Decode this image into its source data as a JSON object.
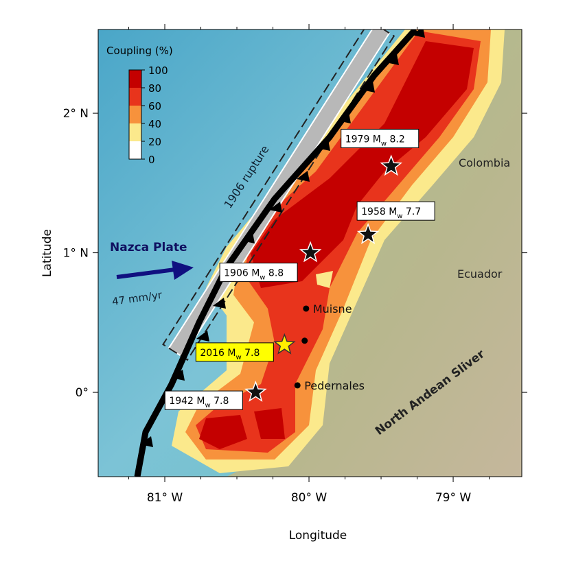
{
  "map": {
    "xlabel": "Longitude",
    "ylabel": "Latitude",
    "xlim": [
      -81.462,
      -78.524
    ],
    "ylim": [
      -0.604,
      2.6
    ],
    "xticks": [
      {
        "value": -81,
        "label": "81°  W"
      },
      {
        "value": -80,
        "label": "80° W"
      },
      {
        "value": -79,
        "label": "79°  W"
      }
    ],
    "yticks": [
      {
        "value": 2,
        "label": "2° N"
      },
      {
        "value": 1,
        "label": "1° N"
      },
      {
        "value": 0,
        "label": "0°"
      }
    ],
    "colorbar": {
      "title": "Coupling (%)",
      "ticks": [
        100,
        80,
        60,
        40,
        20,
        0
      ],
      "colors": [
        "#c40000",
        "#e8341c",
        "#f7923c",
        "#fbe98c",
        "#ffffff"
      ]
    },
    "quakes": [
      {
        "name": "1979 M",
        "sub": "w",
        "mag": " 8.2",
        "lon": -79.43,
        "lat": 1.62,
        "color": "#111111"
      },
      {
        "name": "1958 M",
        "sub": "w",
        "mag": " 7.7",
        "lon": -79.59,
        "lat": 1.13,
        "color": "#111111"
      },
      {
        "name": "1906 M",
        "sub": "w",
        "mag": " 8.8",
        "lon": -79.99,
        "lat": 1.0,
        "color": "#111111"
      },
      {
        "name": "2016 M",
        "sub": "w",
        "mag": " 7.8",
        "lon": -80.17,
        "lat": 0.34,
        "color": "#ffee00",
        "highlight": true
      },
      {
        "name": "1942 M",
        "sub": "w",
        "mag": " 7.8",
        "lon": -80.37,
        "lat": 0.0,
        "color": "#111111"
      }
    ],
    "towns": [
      {
        "name": "Muisne",
        "lon": -80.02,
        "lat": 0.6
      },
      {
        "name": null,
        "lon": -80.03,
        "lat": 0.37
      },
      {
        "name": "Pedernales",
        "lon": -80.08,
        "lat": 0.05
      }
    ],
    "labels": {
      "plate": "Nazca Plate",
      "rate": "47 mm/yr",
      "rupture": "1906 rupture",
      "colombia": "Colombia",
      "ecuador": "Ecuador",
      "sliver": "North Andean Sliver"
    }
  }
}
